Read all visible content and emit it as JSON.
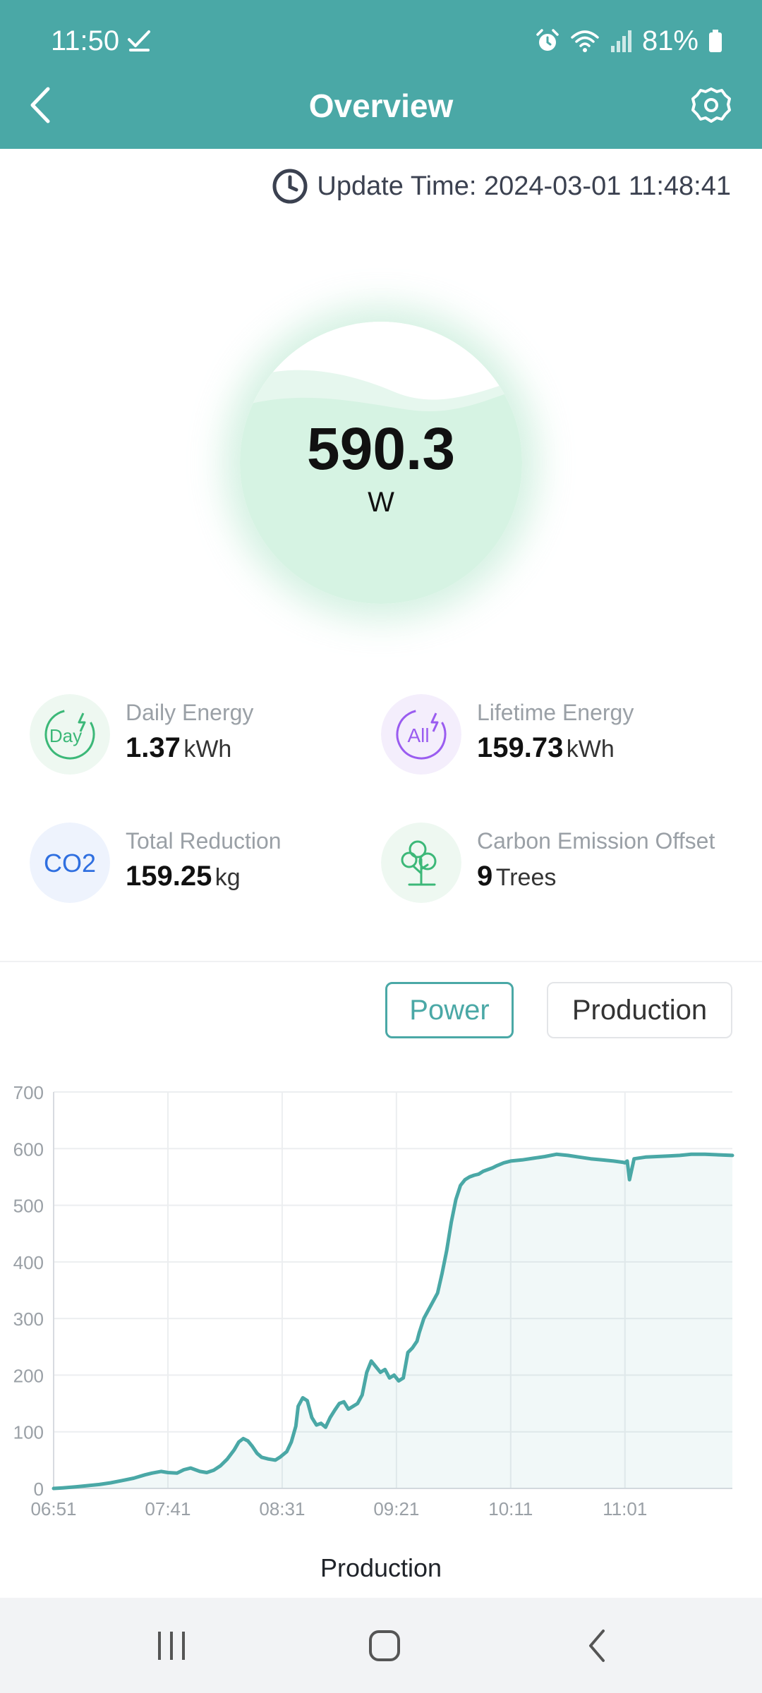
{
  "status_bar": {
    "time": "11:50",
    "battery": "81%"
  },
  "header": {
    "title": "Overview"
  },
  "update": {
    "label": "Update Time: 2024-03-01 11:48:41"
  },
  "gauge": {
    "value": "590.3",
    "unit": "W"
  },
  "stats": [
    {
      "label": "Daily Energy",
      "value": "1.37",
      "unit": "kWh",
      "icon": "day-energy-icon",
      "icon_text": "Day"
    },
    {
      "label": "Lifetime Energy",
      "value": "159.73",
      "unit": "kWh",
      "icon": "all-energy-icon",
      "icon_text": "All"
    },
    {
      "label": "Total Reduction",
      "value": "159.25",
      "unit": "kg",
      "icon": "co2-icon",
      "icon_text": "CO2"
    },
    {
      "label": "Carbon Emission Offset",
      "value": "9",
      "unit": "Trees",
      "icon": "tree-icon"
    }
  ],
  "tabs": {
    "power": "Power",
    "production": "Production"
  },
  "chart_caption": "Production",
  "colors": {
    "brand": "#4aa8a6",
    "gauge_fill": "#d6f3e3",
    "day_icon": "#3cb878",
    "all_icon": "#9a5cf0",
    "co2_icon": "#2f6fe0"
  },
  "chart_data": {
    "type": "area",
    "title": "",
    "xlabel": "",
    "ylabel": "",
    "x_ticks": [
      "06:51",
      "07:41",
      "08:31",
      "09:21",
      "10:11",
      "11:01"
    ],
    "y_ticks": [
      0,
      100,
      200,
      300,
      400,
      500,
      600,
      700
    ],
    "ylim": [
      0,
      700
    ],
    "x_range_minutes": [
      411,
      708
    ],
    "grid": true,
    "series": [
      {
        "x": [
          "06:51",
          "06:55",
          "07:01",
          "07:06",
          "07:11",
          "07:16",
          "07:21",
          "07:26",
          "07:31",
          "07:34",
          "07:38",
          "07:41",
          "07:45",
          "07:48",
          "07:51",
          "07:55",
          "07:58",
          "08:01",
          "08:04",
          "08:07",
          "08:10",
          "08:12",
          "08:14",
          "08:16",
          "08:18",
          "08:20",
          "08:22",
          "08:25",
          "08:28",
          "08:30",
          "08:33",
          "08:35",
          "08:37",
          "08:38",
          "08:40",
          "08:42",
          "08:44",
          "08:46",
          "08:48",
          "08:50",
          "08:52",
          "08:54",
          "08:56",
          "08:58",
          "09:00",
          "09:02",
          "09:04",
          "09:06",
          "09:08",
          "09:10",
          "09:12",
          "09:14",
          "09:16",
          "09:18",
          "09:20",
          "09:22",
          "09:24",
          "09:26",
          "09:28",
          "09:30",
          "09:31",
          "09:33",
          "09:35",
          "09:37",
          "09:39",
          "09:41",
          "09:43",
          "09:45",
          "09:47",
          "09:49",
          "09:51",
          "09:53",
          "09:55",
          "09:57",
          "09:59",
          "10:01",
          "10:03",
          "10:05",
          "10:08",
          "10:11",
          "10:16",
          "10:21",
          "10:26",
          "10:31",
          "10:36",
          "10:41",
          "10:46",
          "10:51",
          "10:56",
          "11:00",
          "11:01",
          "11:02",
          "11:03",
          "11:05",
          "11:10",
          "11:15",
          "11:20",
          "11:25",
          "11:30",
          "11:36",
          "11:48"
        ],
        "values": [
          0,
          1,
          3,
          5,
          7,
          10,
          14,
          18,
          24,
          27,
          30,
          28,
          27,
          33,
          36,
          30,
          28,
          32,
          40,
          52,
          68,
          82,
          88,
          84,
          74,
          62,
          55,
          52,
          50,
          55,
          65,
          82,
          110,
          145,
          160,
          155,
          125,
          112,
          115,
          108,
          125,
          138,
          150,
          153,
          140,
          145,
          150,
          165,
          205,
          225,
          215,
          205,
          210,
          195,
          200,
          190,
          195,
          240,
          248,
          260,
          275,
          300,
          315,
          330,
          345,
          380,
          420,
          470,
          510,
          535,
          545,
          550,
          553,
          555,
          560,
          563,
          566,
          570,
          575,
          578,
          580,
          583,
          586,
          590,
          588,
          585,
          582,
          580,
          578,
          576,
          575,
          578,
          545,
          582,
          585,
          586,
          587,
          588,
          590,
          590,
          588
        ]
      }
    ]
  }
}
